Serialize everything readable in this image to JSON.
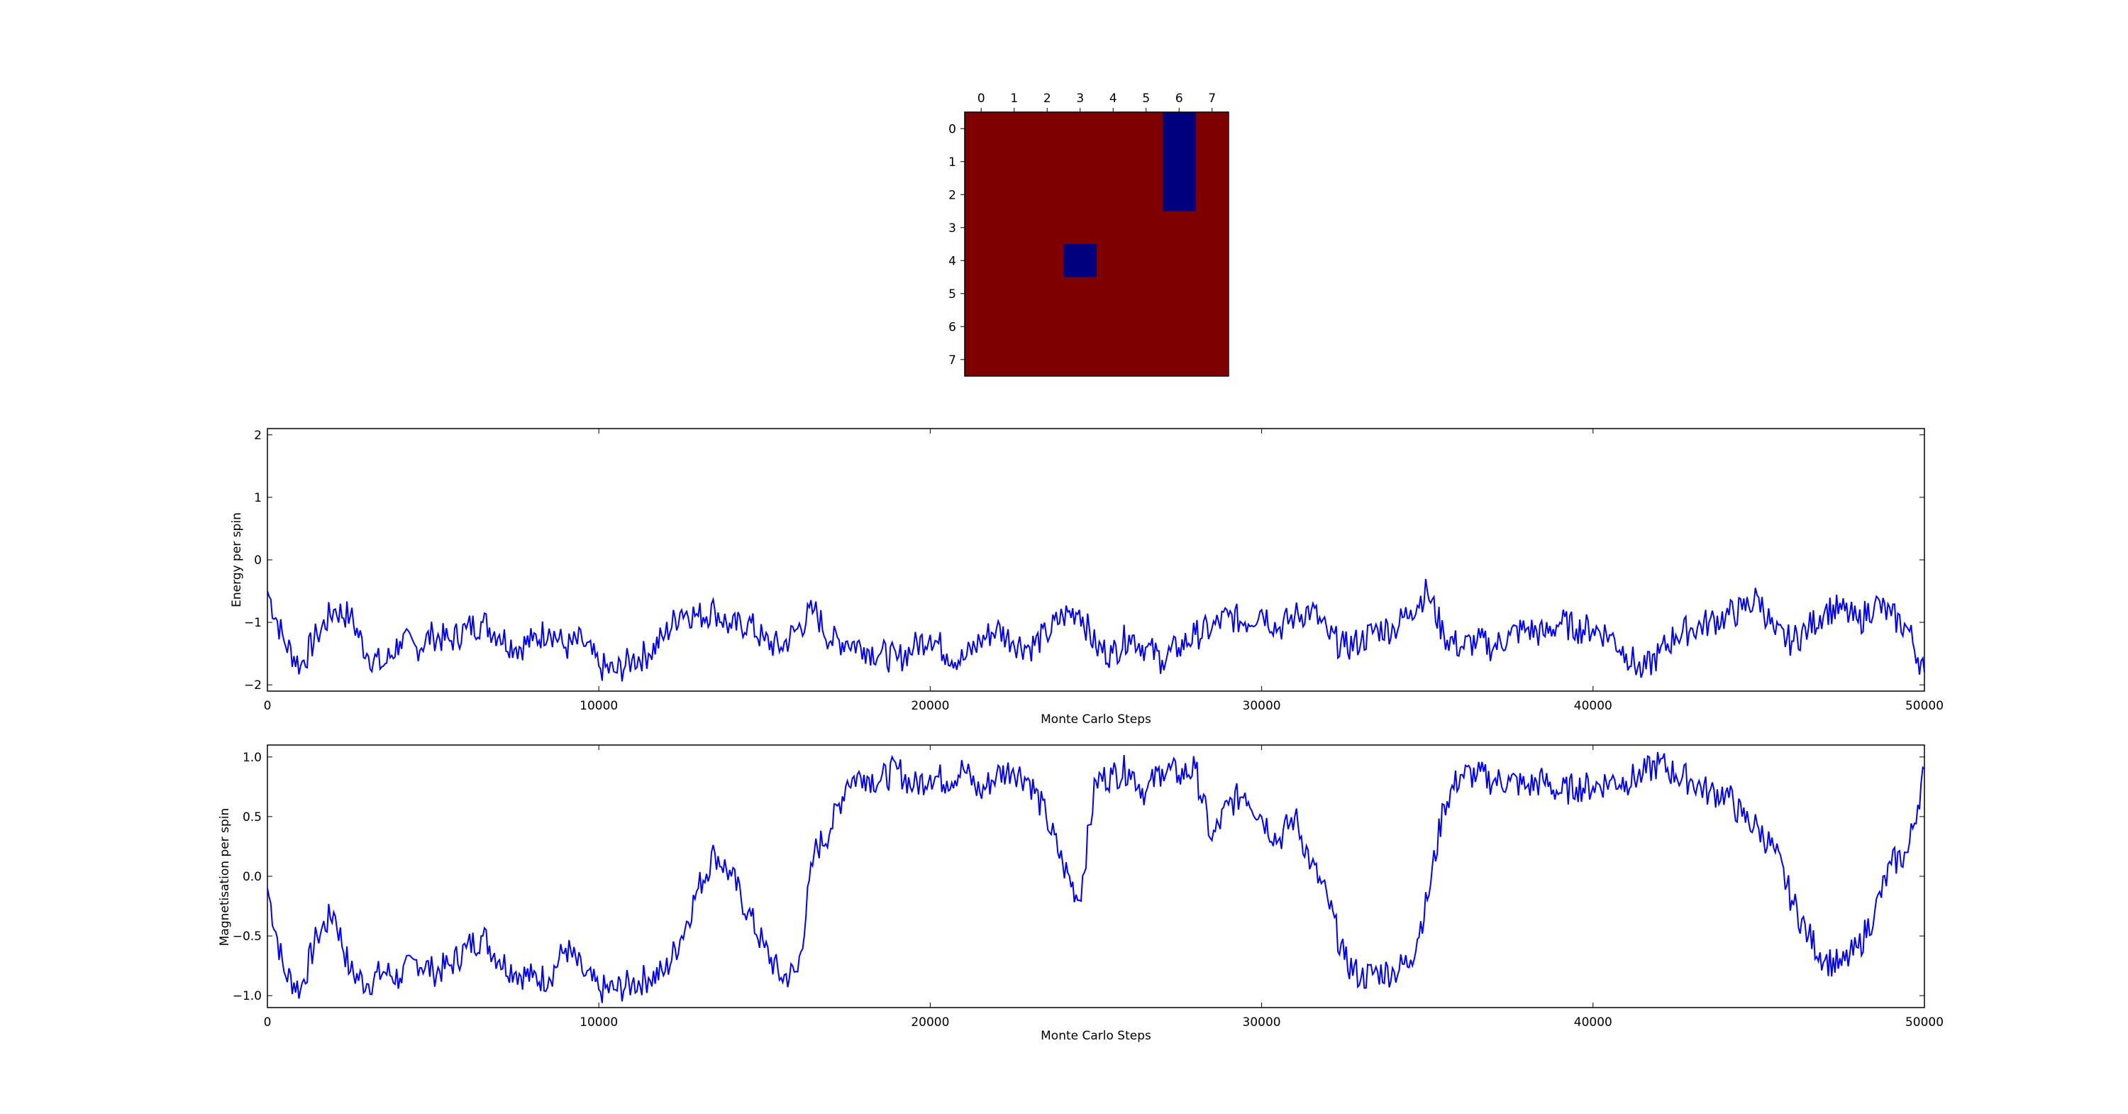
{
  "chart_data": [
    {
      "type": "heatmap",
      "rows": 8,
      "cols": 8,
      "x_ticks": [
        "0",
        "1",
        "2",
        "3",
        "4",
        "5",
        "6",
        "7"
      ],
      "y_ticks": [
        "0",
        "1",
        "2",
        "3",
        "4",
        "5",
        "6",
        "7"
      ],
      "values": [
        [
          1,
          1,
          1,
          1,
          1,
          1,
          -1,
          1
        ],
        [
          1,
          1,
          1,
          1,
          1,
          1,
          -1,
          1
        ],
        [
          1,
          1,
          1,
          1,
          1,
          1,
          -1,
          1
        ],
        [
          1,
          1,
          1,
          1,
          1,
          1,
          1,
          1
        ],
        [
          1,
          1,
          1,
          -1,
          1,
          1,
          1,
          1
        ],
        [
          1,
          1,
          1,
          1,
          1,
          1,
          1,
          1
        ],
        [
          1,
          1,
          1,
          1,
          1,
          1,
          1,
          1
        ],
        [
          1,
          1,
          1,
          1,
          1,
          1,
          1,
          1
        ]
      ],
      "colors": {
        "up": "#7f0000",
        "down": "#00007f"
      }
    },
    {
      "type": "line",
      "xlabel": "Monte Carlo Steps",
      "ylabel": "Energy per spin",
      "xlim": [
        0,
        50000
      ],
      "ylim": [
        -2.1,
        2.1
      ],
      "x_ticks": [
        "0",
        "10000",
        "20000",
        "30000",
        "40000",
        "50000"
      ],
      "y_ticks": [
        "2",
        "1",
        "0",
        "−1",
        "−2"
      ],
      "color": "#0000ff",
      "series": [
        {
          "x": [
            0,
            500,
            1000,
            1500,
            2000,
            2500,
            3000,
            3500,
            4000,
            4500,
            5000,
            5500,
            6000,
            6500,
            7000,
            7500,
            8000,
            8500,
            9000,
            9500,
            10000,
            10500,
            11000,
            11500,
            12000,
            12500,
            13000,
            13500,
            14000,
            14500,
            15000,
            15500,
            16000,
            16500,
            17000,
            17500,
            18000,
            18500,
            19000,
            19500,
            20000,
            20500,
            21000,
            21500,
            22000,
            22500,
            23000,
            23500,
            24000,
            24500,
            25000,
            25500,
            26000,
            26500,
            27000,
            27500,
            28000,
            28500,
            29000,
            29500,
            30000,
            30500,
            31000,
            31500,
            32000,
            32500,
            33000,
            33500,
            34000,
            34500,
            35000,
            35500,
            36000,
            36500,
            37000,
            37500,
            38000,
            38500,
            39000,
            39500,
            40000,
            40500,
            41000,
            41500,
            42000,
            42500,
            43000,
            43500,
            44000,
            44500,
            45000,
            45500,
            46000,
            46500,
            47000,
            47500,
            48000,
            48500,
            49000,
            49500,
            50000
          ],
          "values": [
            -0.5,
            -1.3,
            -1.7,
            -1.2,
            -0.8,
            -0.9,
            -1.5,
            -1.7,
            -1.3,
            -1.4,
            -1.2,
            -1.3,
            -1.1,
            -1.0,
            -1.2,
            -1.4,
            -1.3,
            -1.1,
            -1.4,
            -1.3,
            -1.7,
            -1.8,
            -1.6,
            -1.5,
            -1.2,
            -0.8,
            -0.9,
            -0.8,
            -1.1,
            -1.0,
            -1.3,
            -1.4,
            -1.1,
            -0.8,
            -1.3,
            -1.3,
            -1.4,
            -1.5,
            -1.6,
            -1.4,
            -1.2,
            -1.5,
            -1.6,
            -1.3,
            -1.1,
            -1.3,
            -1.4,
            -1.2,
            -0.9,
            -0.8,
            -1.4,
            -1.5,
            -1.2,
            -1.4,
            -1.6,
            -1.4,
            -1.2,
            -1.1,
            -0.9,
            -1.0,
            -0.8,
            -1.1,
            -0.9,
            -0.8,
            -1.2,
            -1.4,
            -1.3,
            -1.1,
            -1.1,
            -0.8,
            -0.5,
            -1.2,
            -1.4,
            -1.3,
            -1.4,
            -1.2,
            -1.1,
            -1.2,
            -1.0,
            -1.1,
            -1.1,
            -1.2,
            -1.5,
            -1.8,
            -1.5,
            -1.2,
            -1.1,
            -1.0,
            -0.9,
            -0.8,
            -0.6,
            -1.2,
            -1.3,
            -1.1,
            -0.8,
            -0.8,
            -1.0,
            -0.7,
            -0.9,
            -1.1,
            -1.8
          ]
        }
      ]
    },
    {
      "type": "line",
      "xlabel": "Monte Carlo Steps",
      "ylabel": "Magnetisation per spin",
      "xlim": [
        0,
        50000
      ],
      "ylim": [
        -1.1,
        1.1
      ],
      "x_ticks": [
        "0",
        "10000",
        "20000",
        "30000",
        "40000",
        "50000"
      ],
      "y_ticks": [
        "1.0",
        "0.5",
        "0.0",
        "−0.5",
        "−1.0"
      ],
      "color": "#0000ff",
      "series": [
        {
          "x": [
            0,
            500,
            1000,
            1500,
            2000,
            2500,
            3000,
            3500,
            4000,
            4500,
            5000,
            5500,
            6000,
            6500,
            7000,
            7500,
            8000,
            8500,
            9000,
            9500,
            10000,
            10500,
            11000,
            11500,
            12000,
            12500,
            13000,
            13500,
            14000,
            14500,
            15000,
            15500,
            16000,
            16500,
            17000,
            17500,
            18000,
            18500,
            19000,
            19500,
            20000,
            20500,
            21000,
            21500,
            22000,
            22500,
            23000,
            23500,
            24000,
            24500,
            25000,
            25500,
            26000,
            26500,
            27000,
            27500,
            28000,
            28500,
            29000,
            29500,
            30000,
            30500,
            31000,
            31500,
            32000,
            32500,
            33000,
            33500,
            34000,
            34500,
            35000,
            35500,
            36000,
            36500,
            37000,
            37500,
            38000,
            38500,
            39000,
            39500,
            40000,
            40500,
            41000,
            41500,
            42000,
            42500,
            43000,
            43500,
            44000,
            44500,
            45000,
            45500,
            46000,
            46500,
            47000,
            47500,
            48000,
            48500,
            49000,
            49500,
            50000
          ],
          "values": [
            -0.1,
            -0.8,
            -0.95,
            -0.5,
            -0.3,
            -0.8,
            -0.9,
            -0.8,
            -0.85,
            -0.7,
            -0.8,
            -0.75,
            -0.6,
            -0.5,
            -0.7,
            -0.8,
            -0.85,
            -0.85,
            -0.6,
            -0.8,
            -0.95,
            -0.95,
            -0.9,
            -0.85,
            -0.8,
            -0.5,
            -0.1,
            0.2,
            0.0,
            -0.3,
            -0.6,
            -0.85,
            -0.8,
            0.2,
            0.4,
            0.8,
            0.85,
            0.8,
            0.9,
            0.75,
            0.85,
            0.8,
            0.9,
            0.7,
            0.85,
            0.9,
            0.8,
            0.5,
            0.1,
            -0.2,
            0.8,
            0.85,
            0.9,
            0.7,
            0.9,
            0.85,
            0.9,
            0.3,
            0.6,
            0.7,
            0.5,
            0.3,
            0.5,
            0.1,
            -0.2,
            -0.7,
            -0.85,
            -0.8,
            -0.8,
            -0.7,
            -0.2,
            0.6,
            0.85,
            0.85,
            0.8,
            0.8,
            0.75,
            0.8,
            0.7,
            0.75,
            0.75,
            0.8,
            0.8,
            0.85,
            0.95,
            0.85,
            0.8,
            0.7,
            0.7,
            0.5,
            0.4,
            0.2,
            -0.2,
            -0.5,
            -0.7,
            -0.75,
            -0.6,
            -0.3,
            0.1,
            0.2,
            0.9
          ]
        }
      ]
    }
  ]
}
